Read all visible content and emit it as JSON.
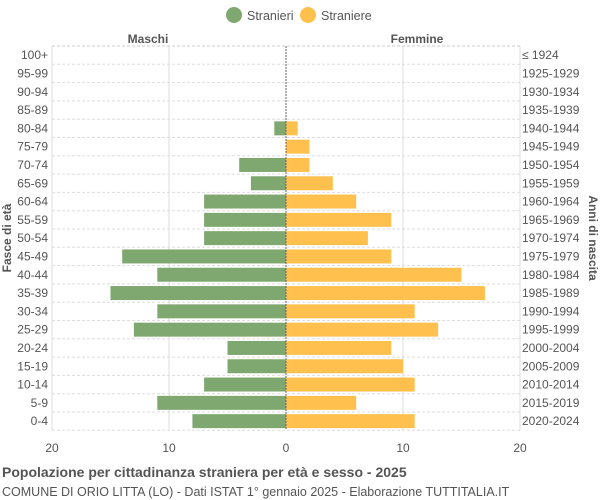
{
  "chart_data": {
    "type": "bar",
    "orientation": "horizontal-pyramid",
    "title": "Popolazione per cittadinanza straniera per età e sesso - 2025",
    "subtitle": "COMUNE DI ORIO LITTA (LO) - Dati ISTAT 1° gennaio 2025 - Elaborazione TUTTITALIA.IT",
    "left_header": "Maschi",
    "right_header": "Femmine",
    "ylabel": "Fasce di età",
    "ylabel_right": "Anni di nascita",
    "xlim": [
      -20,
      20
    ],
    "xticks": [
      "20",
      "10",
      "0",
      "10",
      "20"
    ],
    "grid": true,
    "legend_position": "top",
    "categories": [
      "100+",
      "95-99",
      "90-94",
      "85-89",
      "80-84",
      "75-79",
      "70-74",
      "65-69",
      "60-64",
      "55-59",
      "50-54",
      "45-49",
      "40-44",
      "35-39",
      "30-34",
      "25-29",
      "20-24",
      "15-19",
      "10-14",
      "5-9",
      "0-4"
    ],
    "birth_years": [
      "≤ 1924",
      "1925-1929",
      "1930-1934",
      "1935-1939",
      "1940-1944",
      "1945-1949",
      "1950-1954",
      "1955-1959",
      "1960-1964",
      "1965-1969",
      "1970-1974",
      "1975-1979",
      "1980-1984",
      "1985-1989",
      "1990-1994",
      "1995-1999",
      "2000-2004",
      "2005-2009",
      "2010-2014",
      "2015-2019",
      "2020-2024"
    ],
    "series": [
      {
        "name": "Stranieri",
        "color": "#7fa871",
        "values": [
          0,
          0,
          0,
          0,
          1,
          0,
          4,
          3,
          7,
          7,
          7,
          14,
          11,
          15,
          11,
          13,
          5,
          5,
          7,
          11,
          8
        ]
      },
      {
        "name": "Straniere",
        "color": "#ffc04d",
        "values": [
          0,
          0,
          0,
          0,
          1,
          2,
          2,
          4,
          6,
          9,
          7,
          9,
          15,
          17,
          11,
          13,
          9,
          10,
          11,
          6,
          11
        ]
      }
    ]
  }
}
